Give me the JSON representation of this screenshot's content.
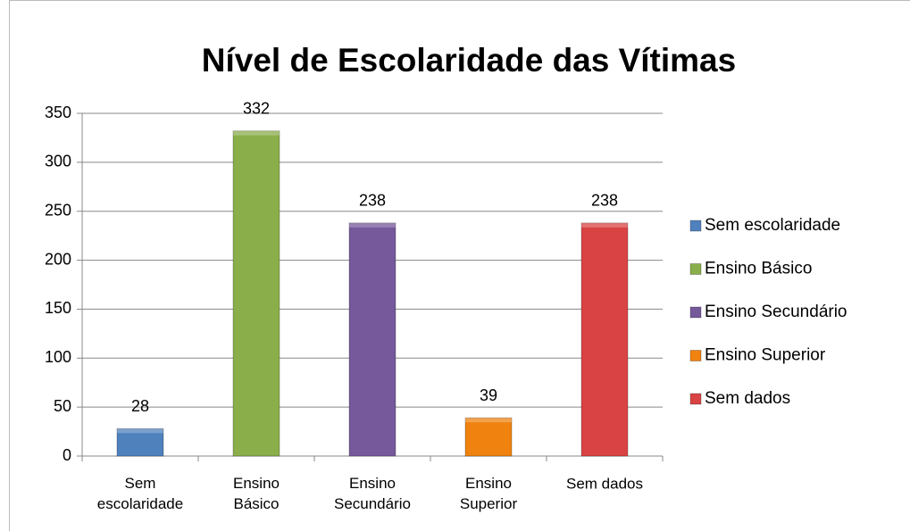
{
  "chart_data": {
    "type": "bar",
    "title": "Nível de Escolaridade das Vítimas",
    "categories": [
      "Sem\nescolaridade",
      "Ensino\nBásico",
      "Ensino\nSecundário",
      "Ensino\nSuperior",
      "Sem dados"
    ],
    "values": [
      28,
      332,
      238,
      39,
      238
    ],
    "colors": [
      "#4f81bd",
      "#8aae4a",
      "#76599b",
      "#f0820f",
      "#d94343"
    ],
    "legend": [
      "Sem escolaridade",
      "Ensino Básico",
      "Ensino Secundário",
      "Ensino Superior",
      "Sem dados"
    ],
    "ylim": [
      0,
      350
    ],
    "yticks": [
      0,
      50,
      100,
      150,
      200,
      250,
      300,
      350
    ],
    "grid": true
  }
}
